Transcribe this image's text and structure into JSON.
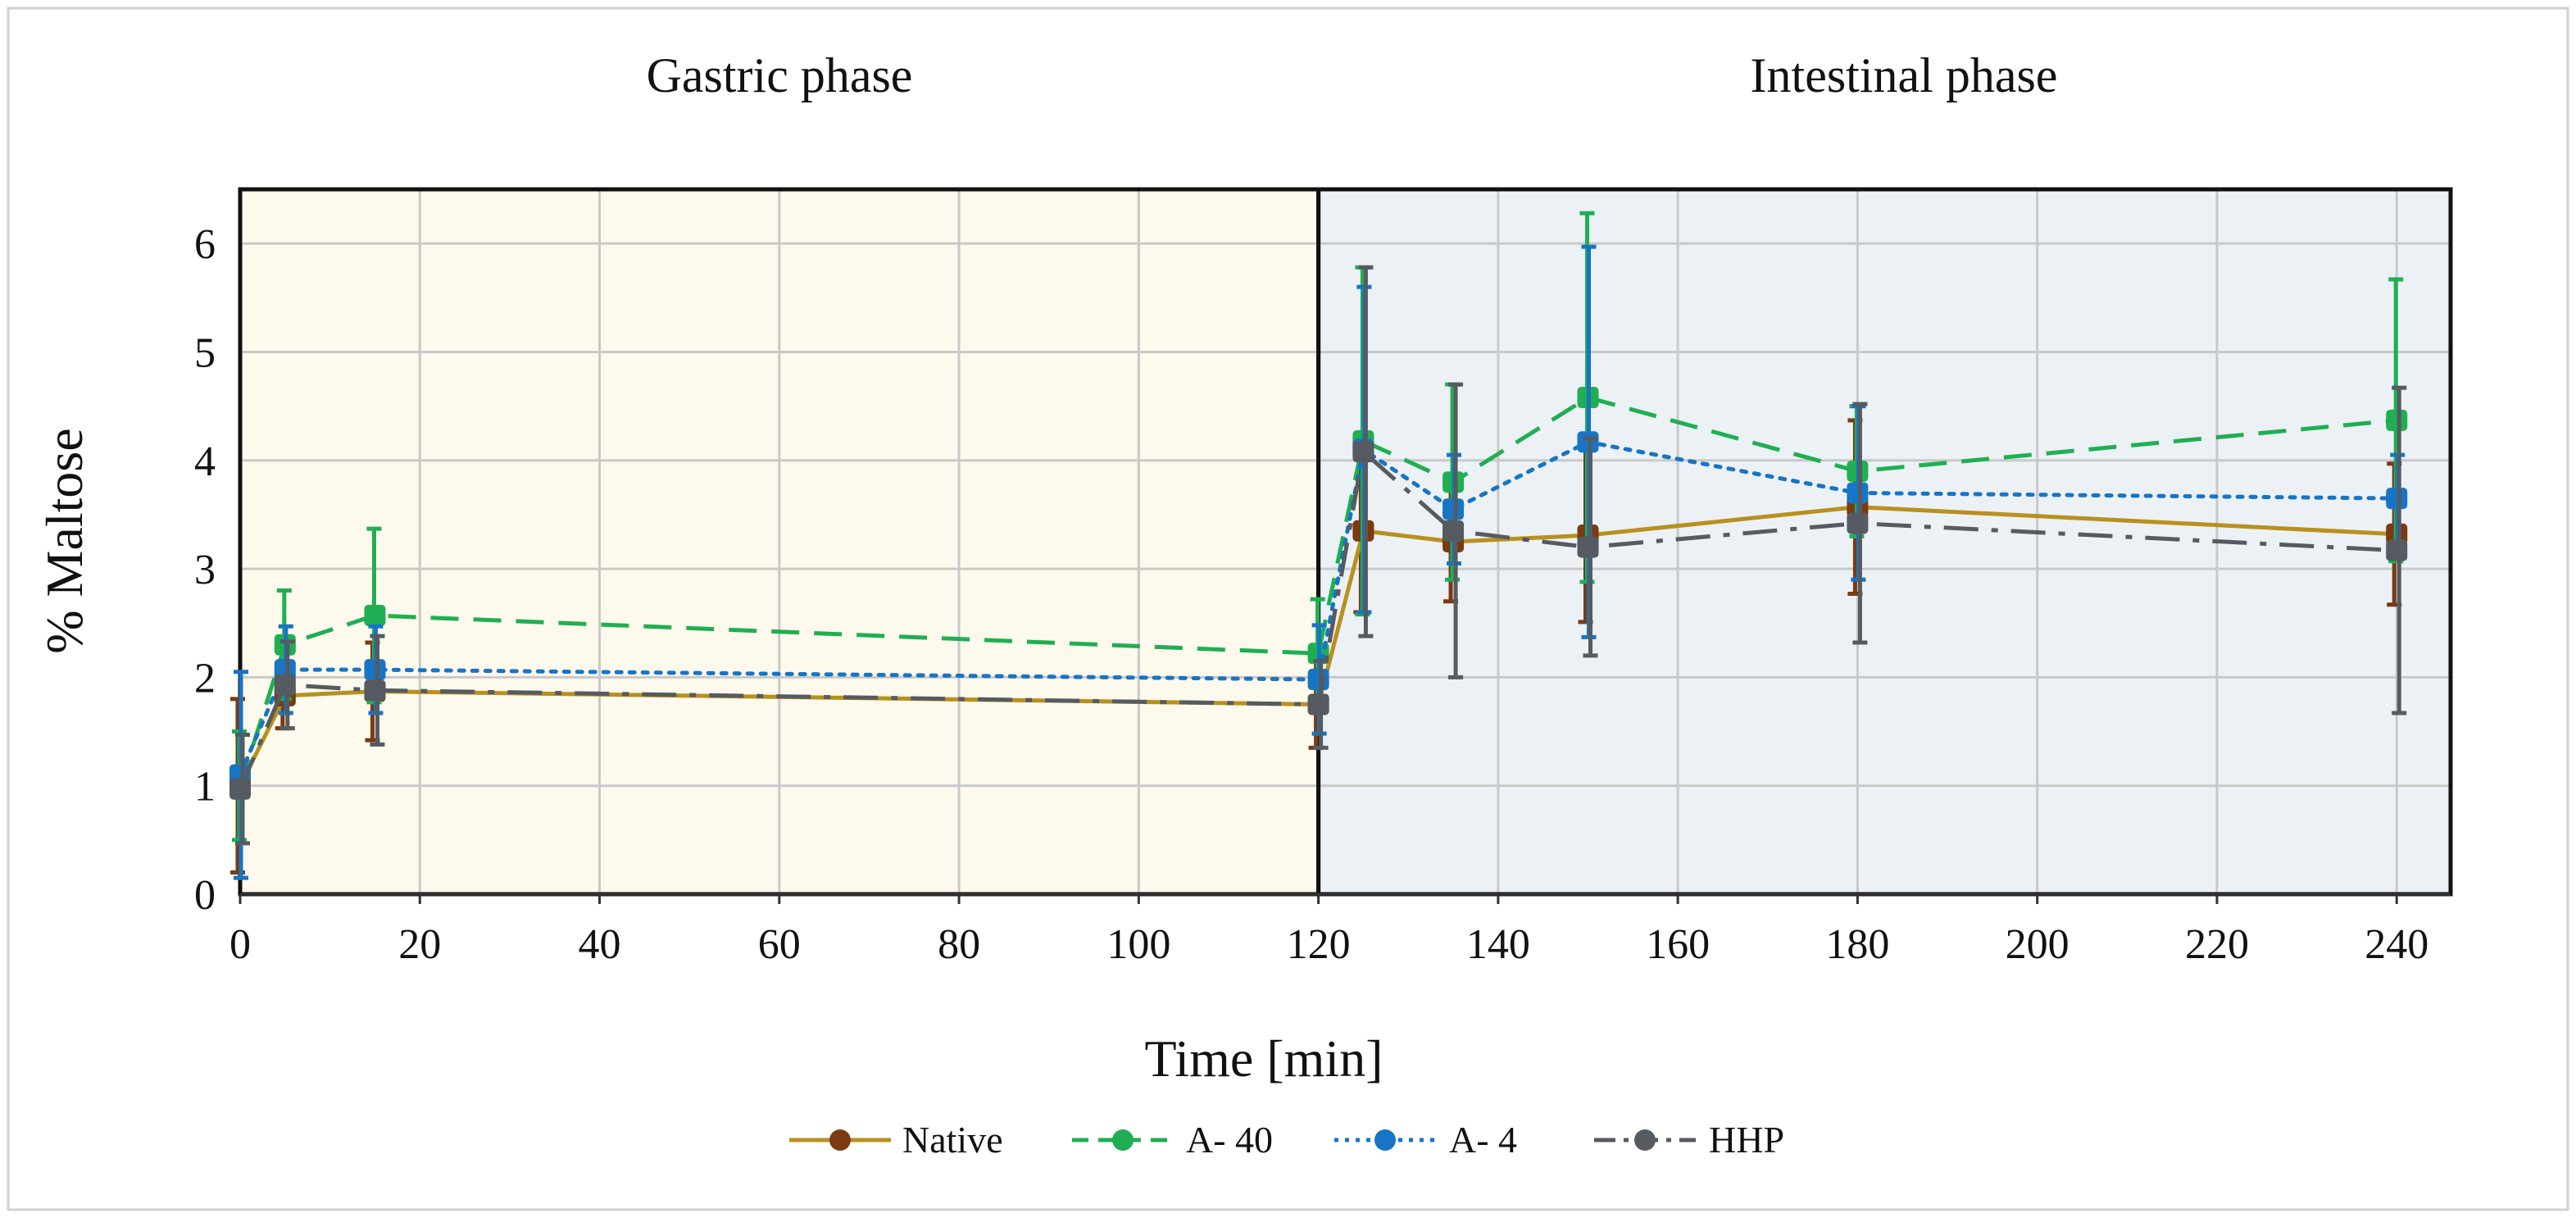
{
  "chart_data": {
    "type": "line",
    "title": "",
    "phases": [
      {
        "label": "Gastric phase",
        "x_start": 0,
        "x_end": 120,
        "color": "#FDF9EC"
      },
      {
        "label": "Intestinal phase",
        "x_start": 120,
        "x_end": 246,
        "color": "#ECF1F5"
      }
    ],
    "xlabel": "Time [min]",
    "ylabel": "% Maltose",
    "xlim": [
      0,
      246
    ],
    "ylim": [
      0,
      6.5
    ],
    "x_ticks": [
      0,
      20,
      40,
      60,
      80,
      100,
      120,
      140,
      160,
      180,
      200,
      220,
      240
    ],
    "x_tick_labels": [
      "0",
      "20",
      "40",
      "60",
      "80",
      "100",
      "120",
      "140",
      "160",
      "180",
      "200",
      "220",
      "240"
    ],
    "y_ticks": [
      0,
      1,
      2,
      3,
      4,
      5,
      6
    ],
    "y_tick_labels": [
      "0",
      "1",
      "2",
      "3",
      "4",
      "5",
      "6"
    ],
    "grid": true,
    "legend_position": "bottom-center",
    "x": [
      0,
      5,
      15,
      120,
      125,
      135,
      150,
      180,
      240
    ],
    "series": [
      {
        "name": "Native",
        "color": "#B8901E",
        "marker_color": "#7A3A12",
        "dash": "solid",
        "values": [
          1.0,
          1.83,
          1.87,
          1.75,
          3.35,
          3.25,
          3.31,
          3.57,
          3.32
        ],
        "errors": [
          0.8,
          0.3,
          0.45,
          0.4,
          0.75,
          0.55,
          0.8,
          0.8,
          0.65
        ]
      },
      {
        "name": "A- 40",
        "color": "#1FAF52",
        "marker_color": "#1FAF52",
        "dash": "dashed",
        "values": [
          1.0,
          2.3,
          2.57,
          2.22,
          4.18,
          3.8,
          4.58,
          3.9,
          4.37
        ],
        "errors": [
          0.5,
          0.5,
          0.8,
          0.5,
          1.6,
          0.9,
          1.7,
          0.6,
          1.3
        ]
      },
      {
        "name": "A- 4",
        "color": "#1874C4",
        "marker_color": "#1874C4",
        "dash": "dotted",
        "values": [
          1.1,
          2.07,
          2.07,
          1.98,
          4.1,
          3.55,
          4.17,
          3.7,
          3.65
        ],
        "errors": [
          0.95,
          0.4,
          0.4,
          0.5,
          1.5,
          0.5,
          1.8,
          0.8,
          0.4
        ]
      },
      {
        "name": "HHP",
        "color": "#555B60",
        "marker_color": "#555B60",
        "dash": "dashdot",
        "values": [
          0.97,
          1.93,
          1.88,
          1.75,
          4.08,
          3.35,
          3.2,
          3.42,
          3.17
        ],
        "errors": [
          0.5,
          0.4,
          0.5,
          0.4,
          1.7,
          1.35,
          1.0,
          1.1,
          1.5
        ]
      }
    ]
  }
}
